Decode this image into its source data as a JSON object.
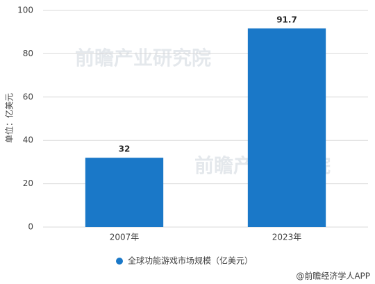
{
  "chart_data": {
    "type": "bar",
    "y_label": "单位：亿美元",
    "categories": [
      "2007年",
      "2023年"
    ],
    "series": [
      {
        "name": "全球功能游戏市场规模（亿美元）",
        "color": "#1a78c8",
        "values": [
          32,
          91.7
        ]
      }
    ],
    "ylim": [
      0,
      100
    ],
    "yticks": [
      0,
      20,
      40,
      60,
      80,
      100
    ],
    "grid": true,
    "legend": "bottom",
    "source": "@前瞻经济学人APP",
    "watermark": "前瞻产业研究院"
  }
}
